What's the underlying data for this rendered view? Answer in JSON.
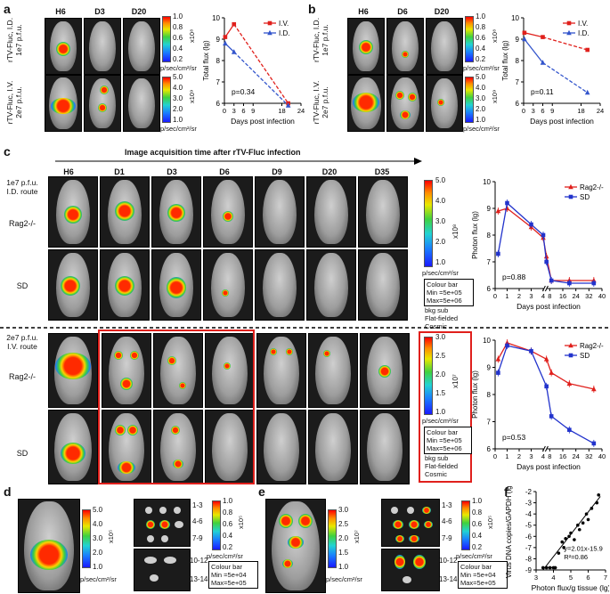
{
  "panels": {
    "a": {
      "label": "a",
      "headers": [
        "H6",
        "D3",
        "D20"
      ],
      "rows": [
        {
          "label": "rTV-Fluc, I.D.\n1e7 p.f.u.",
          "label_line1": "rTV-Fluc, I.D.",
          "label_line2": "1e7 p.f.u."
        },
        {
          "label": "rTV-Fluc, I.V.\n2e7 p.f.u.",
          "label_line1": "rTV-Fluc, I.V.",
          "label_line2": "2e7 p.f.u."
        }
      ],
      "colorbars": [
        {
          "ticks": [
            "1.0",
            "0.8",
            "0.6",
            "0.4",
            "0.2"
          ],
          "exp": "x10⁸",
          "unit": "p/sec/cm²/sr"
        },
        {
          "ticks": [
            "5.0",
            "4.0",
            "3.0",
            "2.0",
            "1.0"
          ],
          "exp": "x10⁹",
          "unit": "p/sec/cm²/sr"
        }
      ],
      "pvalue": "p=0.34"
    },
    "b": {
      "label": "b",
      "headers": [
        "H6",
        "D6",
        "D20"
      ],
      "rows": [
        {
          "label_line1": "rTV-Fluc, I.D.",
          "label_line2": "1e7 p.f.u."
        },
        {
          "label_line1": "rTV-Fluc, I.V.",
          "label_line2": "2e7 p.f.u."
        }
      ],
      "colorbars": [
        {
          "ticks": [
            "1.0",
            "0.8",
            "0.6",
            "0.4",
            "0.2"
          ],
          "exp": "x10⁸",
          "unit": "p/sec/cm²/sr"
        },
        {
          "ticks": [
            "5.0",
            "4.0",
            "3.0",
            "2.0",
            "1.0"
          ],
          "exp": "x10⁹",
          "unit": "p/sec/cm²/sr"
        }
      ],
      "pvalue": "p=0.11"
    },
    "c": {
      "label": "c",
      "arrow_title": "Image acquisition time after rTV-Fluc infection",
      "headers": [
        "H6",
        "D1",
        "D3",
        "D6",
        "D9",
        "D20",
        "D35"
      ],
      "top": {
        "route_line1": "1e7 p.f.u.",
        "route_line2": "I.D. route",
        "row1": "Rag2-/-",
        "row2": "SD",
        "colorbar": {
          "ticks": [
            "5.0",
            "4.0",
            "3.0",
            "2.0",
            "1.0"
          ],
          "exp": "x10⁸",
          "unit": "p/sec/cm²/sr"
        },
        "box_lines": [
          "Colour bar",
          "Min =5e+05",
          "Max=5e+06"
        ],
        "extra_lines": [
          "bkg sub",
          "Flat-fielded",
          "Cosmic"
        ],
        "pvalue": "p=0.88"
      },
      "bottom": {
        "route_line1": "2e7 p.f.u.",
        "route_line2": "I.V. route",
        "row1": "Rag2-/-",
        "row2": "SD",
        "colorbar": {
          "ticks": [
            "3.0",
            "2.5",
            "2.0",
            "1.5",
            "1.0"
          ],
          "exp": "x10⁷",
          "unit": "p/sec/cm²/sr"
        },
        "box_lines": [
          "Colour bar",
          "Min =5e+05",
          "Max=5e+06"
        ],
        "extra_lines": [
          "bkg sub",
          "Flat-fielded",
          "Cosmic"
        ],
        "pvalue": "p=0.53"
      }
    },
    "d": {
      "label": "d",
      "colorbar1": {
        "ticks": [
          "5.0",
          "4.0",
          "3.0",
          "2.0",
          "1.0"
        ],
        "exp": "x10⁵",
        "unit": "p/sec/cm²/sr"
      },
      "row_labels": [
        "1-3",
        "4-6",
        "7-9",
        "10-12",
        "13-14"
      ],
      "colorbar2": {
        "ticks": [
          "1.0",
          "0.8",
          "0.6",
          "0.4",
          "0.2"
        ],
        "exp": "x10⁵",
        "unit": "p/sec/cm²/sr"
      },
      "box_lines": [
        "Colour bar",
        "Min =5e+04",
        "Max=5e+05"
      ]
    },
    "e": {
      "label": "e",
      "colorbar1": {
        "ticks": [
          "3.0",
          "2.5",
          "2.0",
          "1.5",
          "1.0"
        ],
        "exp": "x10⁷",
        "unit": "p/sec/cm²/sr"
      },
      "row_labels": [
        "1-3",
        "4-6",
        "7-9",
        "10-12",
        "13-14"
      ],
      "colorbar2": {
        "ticks": [
          "1.0",
          "0.8",
          "0.6",
          "0.4",
          "0.2"
        ],
        "exp": "x10⁵",
        "unit": "p/sec/cm²/sr"
      },
      "box_lines": [
        "Colour bar",
        "Min =5e+04",
        "Max=5e+05"
      ]
    },
    "f": {
      "label": "f",
      "equation": "y=2.01x-15.9",
      "r2": "R²=0.86"
    }
  },
  "chart_data": [
    {
      "id": "a-chart",
      "type": "line",
      "xlabel": "Days post infection",
      "ylabel": "Total flux (lg)",
      "xticks": [
        0,
        3,
        6,
        9,
        18,
        24
      ],
      "yticks": [
        6,
        7,
        8,
        9,
        10
      ],
      "xlim": [
        0,
        24
      ],
      "ylim": [
        6,
        10
      ],
      "legend": "top-right",
      "series": [
        {
          "name": "I.V.",
          "color": "#e0201c",
          "marker": "square",
          "x": [
            0.25,
            3,
            20
          ],
          "y": [
            9.1,
            9.7,
            6.0
          ]
        },
        {
          "name": "I.D.",
          "color": "#3355cc",
          "marker": "triangle",
          "x": [
            0.25,
            3,
            20
          ],
          "y": [
            8.8,
            8.4,
            5.9
          ]
        }
      ],
      "pvalue": "p=0.34"
    },
    {
      "id": "b-chart",
      "type": "line",
      "xlabel": "Days post infection",
      "ylabel": "Total flux (lg)",
      "xticks": [
        0,
        3,
        6,
        9,
        18,
        24
      ],
      "yticks": [
        6,
        7,
        8,
        9,
        10
      ],
      "xlim": [
        0,
        24
      ],
      "ylim": [
        6,
        10
      ],
      "legend": "top-right",
      "series": [
        {
          "name": "I.V.",
          "color": "#e0201c",
          "marker": "square",
          "x": [
            0.25,
            6,
            20
          ],
          "y": [
            9.3,
            9.1,
            8.5
          ]
        },
        {
          "name": "I.D.",
          "color": "#3355cc",
          "marker": "triangle",
          "x": [
            0.25,
            6,
            20
          ],
          "y": [
            9.0,
            7.9,
            6.5
          ]
        }
      ],
      "pvalue": "p=0.11"
    },
    {
      "id": "c-top-chart",
      "type": "line",
      "xlabel": "Days post infection",
      "ylabel": "Photon flux (lg)",
      "xticks": [
        0,
        1,
        2,
        3,
        4,
        8,
        16,
        24,
        32,
        40
      ],
      "xtick_labels": [
        "0",
        "1",
        "2",
        "3",
        "4",
        "8",
        "16",
        "24",
        "32",
        "40"
      ],
      "yticks": [
        6,
        7,
        8,
        9,
        10
      ],
      "ylim": [
        6,
        10
      ],
      "legend": "top-right",
      "series": [
        {
          "name": "Rag2-/-",
          "color": "#e0201c",
          "marker": "triangle",
          "x": [
            0.25,
            1,
            3,
            4,
            6,
            9,
            20,
            35
          ],
          "y": [
            8.9,
            9.0,
            8.3,
            7.9,
            7.2,
            6.3,
            6.3,
            6.3
          ]
        },
        {
          "name": "SD",
          "color": "#2233cc",
          "marker": "square",
          "x": [
            0.25,
            1,
            3,
            4,
            6,
            9,
            20,
            35
          ],
          "y": [
            7.3,
            9.2,
            8.4,
            8.0,
            7.0,
            6.3,
            6.2,
            6.2
          ]
        }
      ],
      "pvalue": "p=0.88"
    },
    {
      "id": "c-bottom-chart",
      "type": "line",
      "xlabel": "Days post infection",
      "ylabel": "Photon flux (lg)",
      "xticks": [
        0,
        1,
        2,
        3,
        4,
        8,
        16,
        24,
        32,
        40
      ],
      "xtick_labels": [
        "0",
        "1",
        "2",
        "3",
        "4",
        "8",
        "16",
        "24",
        "32",
        "40"
      ],
      "yticks": [
        6,
        7,
        8,
        9,
        10
      ],
      "ylim": [
        6,
        10
      ],
      "legend": "top-right",
      "series": [
        {
          "name": "Rag2-/-",
          "color": "#e0201c",
          "marker": "triangle",
          "x": [
            0.25,
            1,
            3,
            6,
            9,
            20,
            35
          ],
          "y": [
            9.3,
            9.9,
            9.6,
            9.3,
            8.8,
            8.4,
            8.2
          ]
        },
        {
          "name": "SD",
          "color": "#2233cc",
          "marker": "square",
          "x": [
            0.25,
            1,
            3,
            6,
            9,
            20,
            35
          ],
          "y": [
            8.8,
            9.8,
            9.6,
            8.3,
            7.2,
            6.7,
            6.2
          ]
        }
      ],
      "pvalue": "p=0.53"
    },
    {
      "id": "f-chart",
      "type": "scatter",
      "xlabel": "Photon flux/g tissue (lg)",
      "ylabel": "Virus DNA copies/GAPDH (lg)",
      "xticks": [
        3,
        4,
        5,
        6,
        7
      ],
      "yticks": [
        -2,
        -3,
        -4,
        -5,
        -6,
        -7,
        -8,
        -9
      ],
      "xlim": [
        3,
        7
      ],
      "ylim": [
        -9,
        -2
      ],
      "points": [
        [
          3.4,
          -8.8
        ],
        [
          3.6,
          -8.8
        ],
        [
          3.8,
          -8.8
        ],
        [
          4.0,
          -8.8
        ],
        [
          4.1,
          -8.8
        ],
        [
          4.3,
          -7.5
        ],
        [
          4.5,
          -6.5
        ],
        [
          4.6,
          -7.0
        ],
        [
          4.7,
          -6.2
        ],
        [
          4.9,
          -6.0
        ],
        [
          5.0,
          -5.7
        ],
        [
          5.2,
          -6.3
        ],
        [
          5.4,
          -5.0
        ],
        [
          5.5,
          -5.4
        ],
        [
          5.7,
          -4.8
        ],
        [
          5.9,
          -4.0
        ],
        [
          6.0,
          -4.5
        ],
        [
          6.2,
          -3.5
        ],
        [
          6.5,
          -3.0
        ],
        [
          6.6,
          -2.3
        ]
      ],
      "fit": {
        "slope": 2.01,
        "intercept": -15.9
      },
      "equation": "y=2.01x-15.9",
      "r2": "R²=0.86"
    }
  ]
}
